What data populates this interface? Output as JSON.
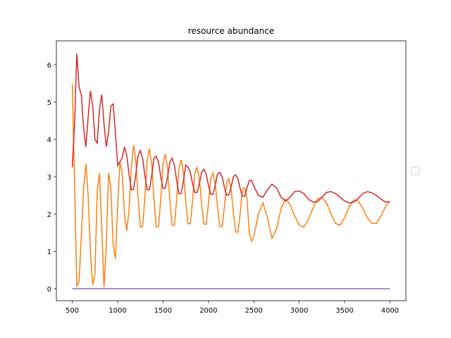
{
  "chart_data": {
    "type": "line",
    "title": "resource abundance",
    "x": [
      500,
      525,
      550,
      575,
      600,
      625,
      650,
      675,
      700,
      725,
      750,
      775,
      800,
      825,
      850,
      875,
      900,
      925,
      950,
      975,
      1000,
      1025,
      1050,
      1075,
      1100,
      1125,
      1150,
      1175,
      1200,
      1225,
      1250,
      1275,
      1300,
      1325,
      1350,
      1375,
      1400,
      1425,
      1450,
      1475,
      1500,
      1525,
      1550,
      1575,
      1600,
      1625,
      1650,
      1675,
      1700,
      1725,
      1750,
      1775,
      1800,
      1825,
      1850,
      1875,
      1900,
      1925,
      1950,
      1975,
      2000,
      2025,
      2050,
      2075,
      2100,
      2125,
      2150,
      2175,
      2200,
      2225,
      2250,
      2275,
      2300,
      2325,
      2350,
      2375,
      2400,
      2425,
      2450,
      2475,
      2500,
      2550,
      2600,
      2650,
      2700,
      2750,
      2800,
      2850,
      2900,
      2950,
      3000,
      3050,
      3100,
      3150,
      3200,
      3250,
      3300,
      3350,
      3400,
      3450,
      3500,
      3550,
      3600,
      3650,
      3700,
      3750,
      3800,
      3850,
      3900,
      3950,
      4000
    ],
    "series": [
      {
        "color": "#ff7f0e",
        "values": [
          5.5,
          2.9,
          0.05,
          0.2,
          1.4,
          2.7,
          3.35,
          2.5,
          1.0,
          0.1,
          0.4,
          2.6,
          3.1,
          1.6,
          0.05,
          1.2,
          3.1,
          2.7,
          1.2,
          0.8,
          2.2,
          3.4,
          3.1,
          2.0,
          1.55,
          2.1,
          3.2,
          3.85,
          3.42,
          2.44,
          1.66,
          1.66,
          2.44,
          3.42,
          3.75,
          3.34,
          2.4,
          1.66,
          1.66,
          2.4,
          3.34,
          3.6,
          3.22,
          2.38,
          1.7,
          1.7,
          2.38,
          3.22,
          3.45,
          3.11,
          2.35,
          1.74,
          1.74,
          2.35,
          3.11,
          3.25,
          2.95,
          2.27,
          1.73,
          1.73,
          2.27,
          2.95,
          3.1,
          2.82,
          2.18,
          1.67,
          1.67,
          2.18,
          2.82,
          2.95,
          2.67,
          2.03,
          1.52,
          1.52,
          2.03,
          2.67,
          2.7,
          2.4,
          1.5,
          1.27,
          1.4,
          2.0,
          2.3,
          1.9,
          1.35,
          1.6,
          2.15,
          2.4,
          2.25,
          1.95,
          1.7,
          1.65,
          1.85,
          2.15,
          2.4,
          2.45,
          2.3,
          2.0,
          1.75,
          1.7,
          1.9,
          2.2,
          2.38,
          2.35,
          2.15,
          1.9,
          1.75,
          1.75,
          1.95,
          2.2,
          2.35
        ]
      },
      {
        "color": "#d62728",
        "values": [
          3.25,
          4.4,
          6.3,
          5.4,
          5.2,
          4.3,
          3.8,
          4.6,
          5.3,
          4.9,
          4.0,
          3.9,
          4.8,
          5.2,
          4.4,
          3.8,
          4.2,
          4.9,
          4.95,
          4.2,
          3.3,
          3.4,
          3.5,
          3.8,
          3.57,
          3.07,
          2.66,
          2.66,
          3.07,
          3.57,
          3.7,
          3.49,
          3.03,
          2.65,
          2.65,
          3.03,
          3.49,
          3.55,
          3.38,
          3.0,
          2.69,
          2.69,
          3.0,
          3.38,
          3.5,
          3.31,
          2.89,
          2.55,
          2.55,
          2.89,
          3.31,
          3.25,
          3.12,
          2.82,
          2.58,
          2.58,
          2.82,
          3.12,
          3.2,
          3.07,
          2.77,
          2.53,
          2.53,
          2.77,
          3.07,
          3.12,
          3.0,
          2.73,
          2.51,
          2.51,
          2.73,
          3.0,
          3.05,
          2.94,
          2.68,
          2.48,
          2.48,
          2.7,
          2.9,
          2.9,
          2.75,
          2.5,
          2.45,
          2.65,
          2.8,
          2.7,
          2.45,
          2.35,
          2.45,
          2.6,
          2.62,
          2.55,
          2.4,
          2.32,
          2.33,
          2.45,
          2.58,
          2.6,
          2.55,
          2.45,
          2.35,
          2.3,
          2.32,
          2.42,
          2.55,
          2.6,
          2.57,
          2.5,
          2.4,
          2.32,
          2.33
        ]
      },
      {
        "color": "#9467bd",
        "values": [
          0,
          0,
          0,
          0,
          0,
          0,
          0,
          0,
          0,
          0,
          0,
          0,
          0,
          0,
          0,
          0,
          0,
          0,
          0,
          0,
          0,
          0,
          0,
          0,
          0,
          0,
          0,
          0,
          0,
          0,
          0,
          0,
          0,
          0,
          0,
          0,
          0,
          0,
          0,
          0,
          0,
          0,
          0,
          0,
          0,
          0,
          0,
          0,
          0,
          0,
          0,
          0,
          0,
          0,
          0,
          0,
          0,
          0,
          0,
          0,
          0,
          0,
          0,
          0,
          0,
          0,
          0,
          0,
          0,
          0,
          0,
          0,
          0,
          0,
          0,
          0,
          0,
          0,
          0,
          0,
          0,
          0,
          0,
          0,
          0,
          0,
          0,
          0,
          0,
          0,
          0,
          0,
          0,
          0,
          0,
          0,
          0,
          0,
          0,
          0,
          0,
          0,
          0,
          0,
          0,
          0,
          0,
          0,
          0,
          0,
          0
        ]
      }
    ],
    "xlim": [
      325,
      4175
    ],
    "ylim": [
      -0.32,
      6.64
    ],
    "xticks": [
      500,
      1000,
      1500,
      2000,
      2500,
      3000,
      3500,
      4000
    ],
    "yticks": [
      0,
      1,
      2,
      3,
      4,
      5,
      6
    ]
  }
}
